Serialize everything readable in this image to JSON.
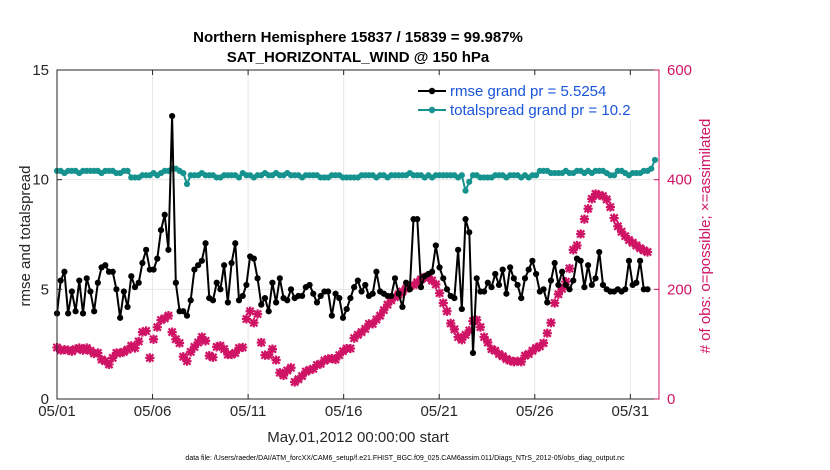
{
  "chart_data": {
    "type": "line",
    "title": "Northern Hemisphere 15837 / 15839 = 99.987%",
    "subtitle": "SAT_HORIZONTAL_WIND @ 150 hPa",
    "xlabel": "May.01,2012 00:00:00 start",
    "ylabel": "rmse and totalspread",
    "ylabel_right": "# of obs: o=possible; ×=assimilated",
    "footer": "data file: /Users/raeder/DAI/ATM_forcXX/CAM6_setup/f.e21.FHIST_BGC.f09_025.CAM6assim.011/Diags_NTrS_2012-05/obs_diag_output.nc",
    "xlim": [
      0,
      31.5
    ],
    "ylim": [
      0,
      15
    ],
    "ylim_right": [
      0,
      600
    ],
    "x_ticks": [
      0,
      5,
      10,
      15,
      20,
      25,
      30
    ],
    "x_tick_labels": [
      "05/01",
      "05/06",
      "05/11",
      "05/16",
      "05/21",
      "05/26",
      "05/31"
    ],
    "y_ticks": [
      0,
      5,
      10,
      15
    ],
    "y_tick_labels": [
      "0",
      "5",
      "10",
      "15"
    ],
    "y_ticks_right": [
      0,
      200,
      400,
      600
    ],
    "y_tick_labels_right": [
      "0",
      "200",
      "400",
      "600"
    ],
    "grid": true,
    "legend_position": "top-right",
    "colors": {
      "rmse": "#000000",
      "spread": "#16938f",
      "obs": "#d01465",
      "legend_text": "#1a55d9"
    },
    "series": [
      {
        "name": "rmse grand pr = 5.5254",
        "values": [
          3.9,
          5.4,
          5.8,
          3.9,
          4.9,
          4.0,
          5.4,
          3.9,
          5.5,
          4.9,
          4.0,
          5.3,
          6.0,
          6.1,
          5.8,
          5.8,
          5.0,
          3.7,
          4.9,
          4.2,
          5.6,
          5.1,
          5.3,
          6.2,
          6.8,
          5.9,
          5.9,
          6.4,
          7.7,
          8.4,
          6.8,
          12.9,
          5.3,
          4.0,
          4.0,
          3.8,
          4.5,
          5.9,
          6.1,
          6.3,
          7.1,
          4.6,
          4.5,
          5.3,
          5.0,
          6.1,
          4.4,
          6.2,
          7.1,
          4.5,
          4.7,
          5.2,
          6.5,
          6.4,
          5.5,
          4.3,
          4.6,
          4.0,
          5.3,
          4.4,
          5.5,
          4.6,
          4.5,
          5.0,
          4.6,
          4.7,
          4.7,
          5.1,
          5.2,
          4.8,
          4.4,
          4.7,
          4.9,
          4.9,
          3.8,
          4.8,
          4.6,
          3.7,
          4.1,
          4.6,
          5.1,
          5.4,
          4.9,
          5.2,
          4.7,
          4.8,
          5.8,
          4.9,
          4.8,
          4.7,
          4.7,
          5.5,
          4.8,
          4.2,
          5.3,
          5.0,
          8.2,
          8.2,
          5.1,
          5.6,
          5.7,
          5.8,
          7.0,
          6.0,
          5.5,
          5.0,
          4.7,
          4.6,
          6.8,
          4.1,
          8.2,
          7.6,
          2.1,
          5.5,
          4.9,
          4.9,
          5.3,
          5.1,
          5.7,
          5.2,
          5.9,
          4.8,
          6.0,
          5.5,
          5.2,
          4.6,
          5.5,
          5.9,
          6.3,
          5.7,
          4.9,
          5.0,
          4.4,
          5.4,
          6.2,
          5.2,
          5.8,
          5.2,
          5.0,
          5.4,
          6.4,
          6.3,
          5.1,
          6.1,
          5.2,
          5.5,
          6.7,
          5.2,
          5.0,
          4.9,
          4.9,
          5.0,
          4.9,
          5.0,
          6.3,
          5.2,
          5.3,
          6.3,
          5.0,
          5.0
        ]
      },
      {
        "name": "totalspread grand pr = 10.2",
        "values": [
          10.4,
          10.4,
          10.3,
          10.4,
          10.4,
          10.4,
          10.3,
          10.4,
          10.4,
          10.4,
          10.4,
          10.4,
          10.3,
          10.4,
          10.4,
          10.4,
          10.3,
          10.3,
          10.4,
          10.4,
          10.1,
          10.1,
          10.1,
          10.2,
          10.2,
          10.2,
          10.3,
          10.2,
          10.3,
          10.4,
          10.4,
          10.5,
          10.5,
          10.4,
          10.3,
          9.8,
          10.2,
          10.2,
          10.2,
          10.3,
          10.2,
          10.2,
          10.2,
          10.1,
          10.1,
          10.2,
          10.2,
          10.2,
          10.2,
          10.1,
          10.3,
          10.2,
          10.2,
          10.1,
          10.2,
          10.2,
          10.3,
          10.2,
          10.2,
          10.3,
          10.2,
          10.2,
          10.3,
          10.2,
          10.2,
          10.2,
          10.1,
          10.2,
          10.2,
          10.2,
          10.2,
          10.1,
          10.1,
          10.1,
          10.2,
          10.2,
          10.2,
          10.1,
          10.1,
          10.1,
          10.1,
          10.1,
          10.2,
          10.2,
          10.2,
          10.2,
          10.1,
          10.2,
          10.2,
          10.1,
          10.2,
          10.2,
          10.2,
          10.2,
          10.2,
          10.3,
          10.2,
          10.2,
          10.2,
          10.1,
          10.2,
          10.1,
          10.2,
          10.2,
          10.2,
          10.2,
          10.2,
          10.2,
          10.1,
          10.2,
          9.5,
          9.9,
          10.2,
          10.2,
          10.1,
          10.1,
          10.1,
          10.1,
          10.2,
          10.2,
          10.2,
          10.1,
          10.2,
          10.2,
          10.2,
          10.1,
          10.2,
          10.1,
          10.2,
          10.2,
          10.4,
          10.4,
          10.4,
          10.3,
          10.3,
          10.3,
          10.3,
          10.4,
          10.3,
          10.3,
          10.4,
          10.4,
          10.3,
          10.4,
          10.3,
          10.4,
          10.4,
          10.4,
          10.3,
          10.2,
          10.2,
          10.4,
          10.4,
          10.3,
          10.2,
          10.3,
          10.3,
          10.3,
          10.4,
          10.4,
          10.5,
          10.9
        ]
      }
    ],
    "obs_series": {
      "name": "# of obs",
      "values": [
        94,
        89,
        90,
        89,
        87,
        91,
        93,
        89,
        93,
        88,
        83,
        84,
        72,
        69,
        63,
        75,
        84,
        84,
        86,
        90,
        97,
        93,
        105,
        122,
        124,
        75,
        109,
        131,
        144,
        147,
        152,
        122,
        109,
        102,
        77,
        69,
        86,
        95,
        103,
        113,
        106,
        79,
        76,
        95,
        97,
        91,
        81,
        81,
        84,
        93,
        94,
        146,
        160,
        139,
        155,
        103,
        80,
        80,
        91,
        71,
        48,
        43,
        52,
        57,
        31,
        36,
        42,
        50,
        53,
        55,
        62,
        64,
        70,
        73,
        74,
        72,
        80,
        87,
        92,
        92,
        111,
        117,
        122,
        128,
        137,
        137,
        145,
        152,
        162,
        172,
        180,
        186,
        191,
        196,
        201,
        206,
        208,
        213,
        218,
        222,
        221,
        216,
        209,
        193,
        175,
        160,
        138,
        127,
        113,
        108,
        117,
        125,
        142,
        144,
        131,
        113,
        103,
        91,
        88,
        82,
        78,
        73,
        70,
        68,
        69,
        68,
        79,
        82,
        88,
        93,
        96,
        102,
        120,
        139,
        175,
        191,
        201,
        214,
        238,
        272,
        280,
        301,
        328,
        347,
        365,
        374,
        372,
        370,
        364,
        350,
        330,
        315,
        305,
        297,
        290,
        285,
        280,
        275,
        271,
        268
      ]
    }
  }
}
